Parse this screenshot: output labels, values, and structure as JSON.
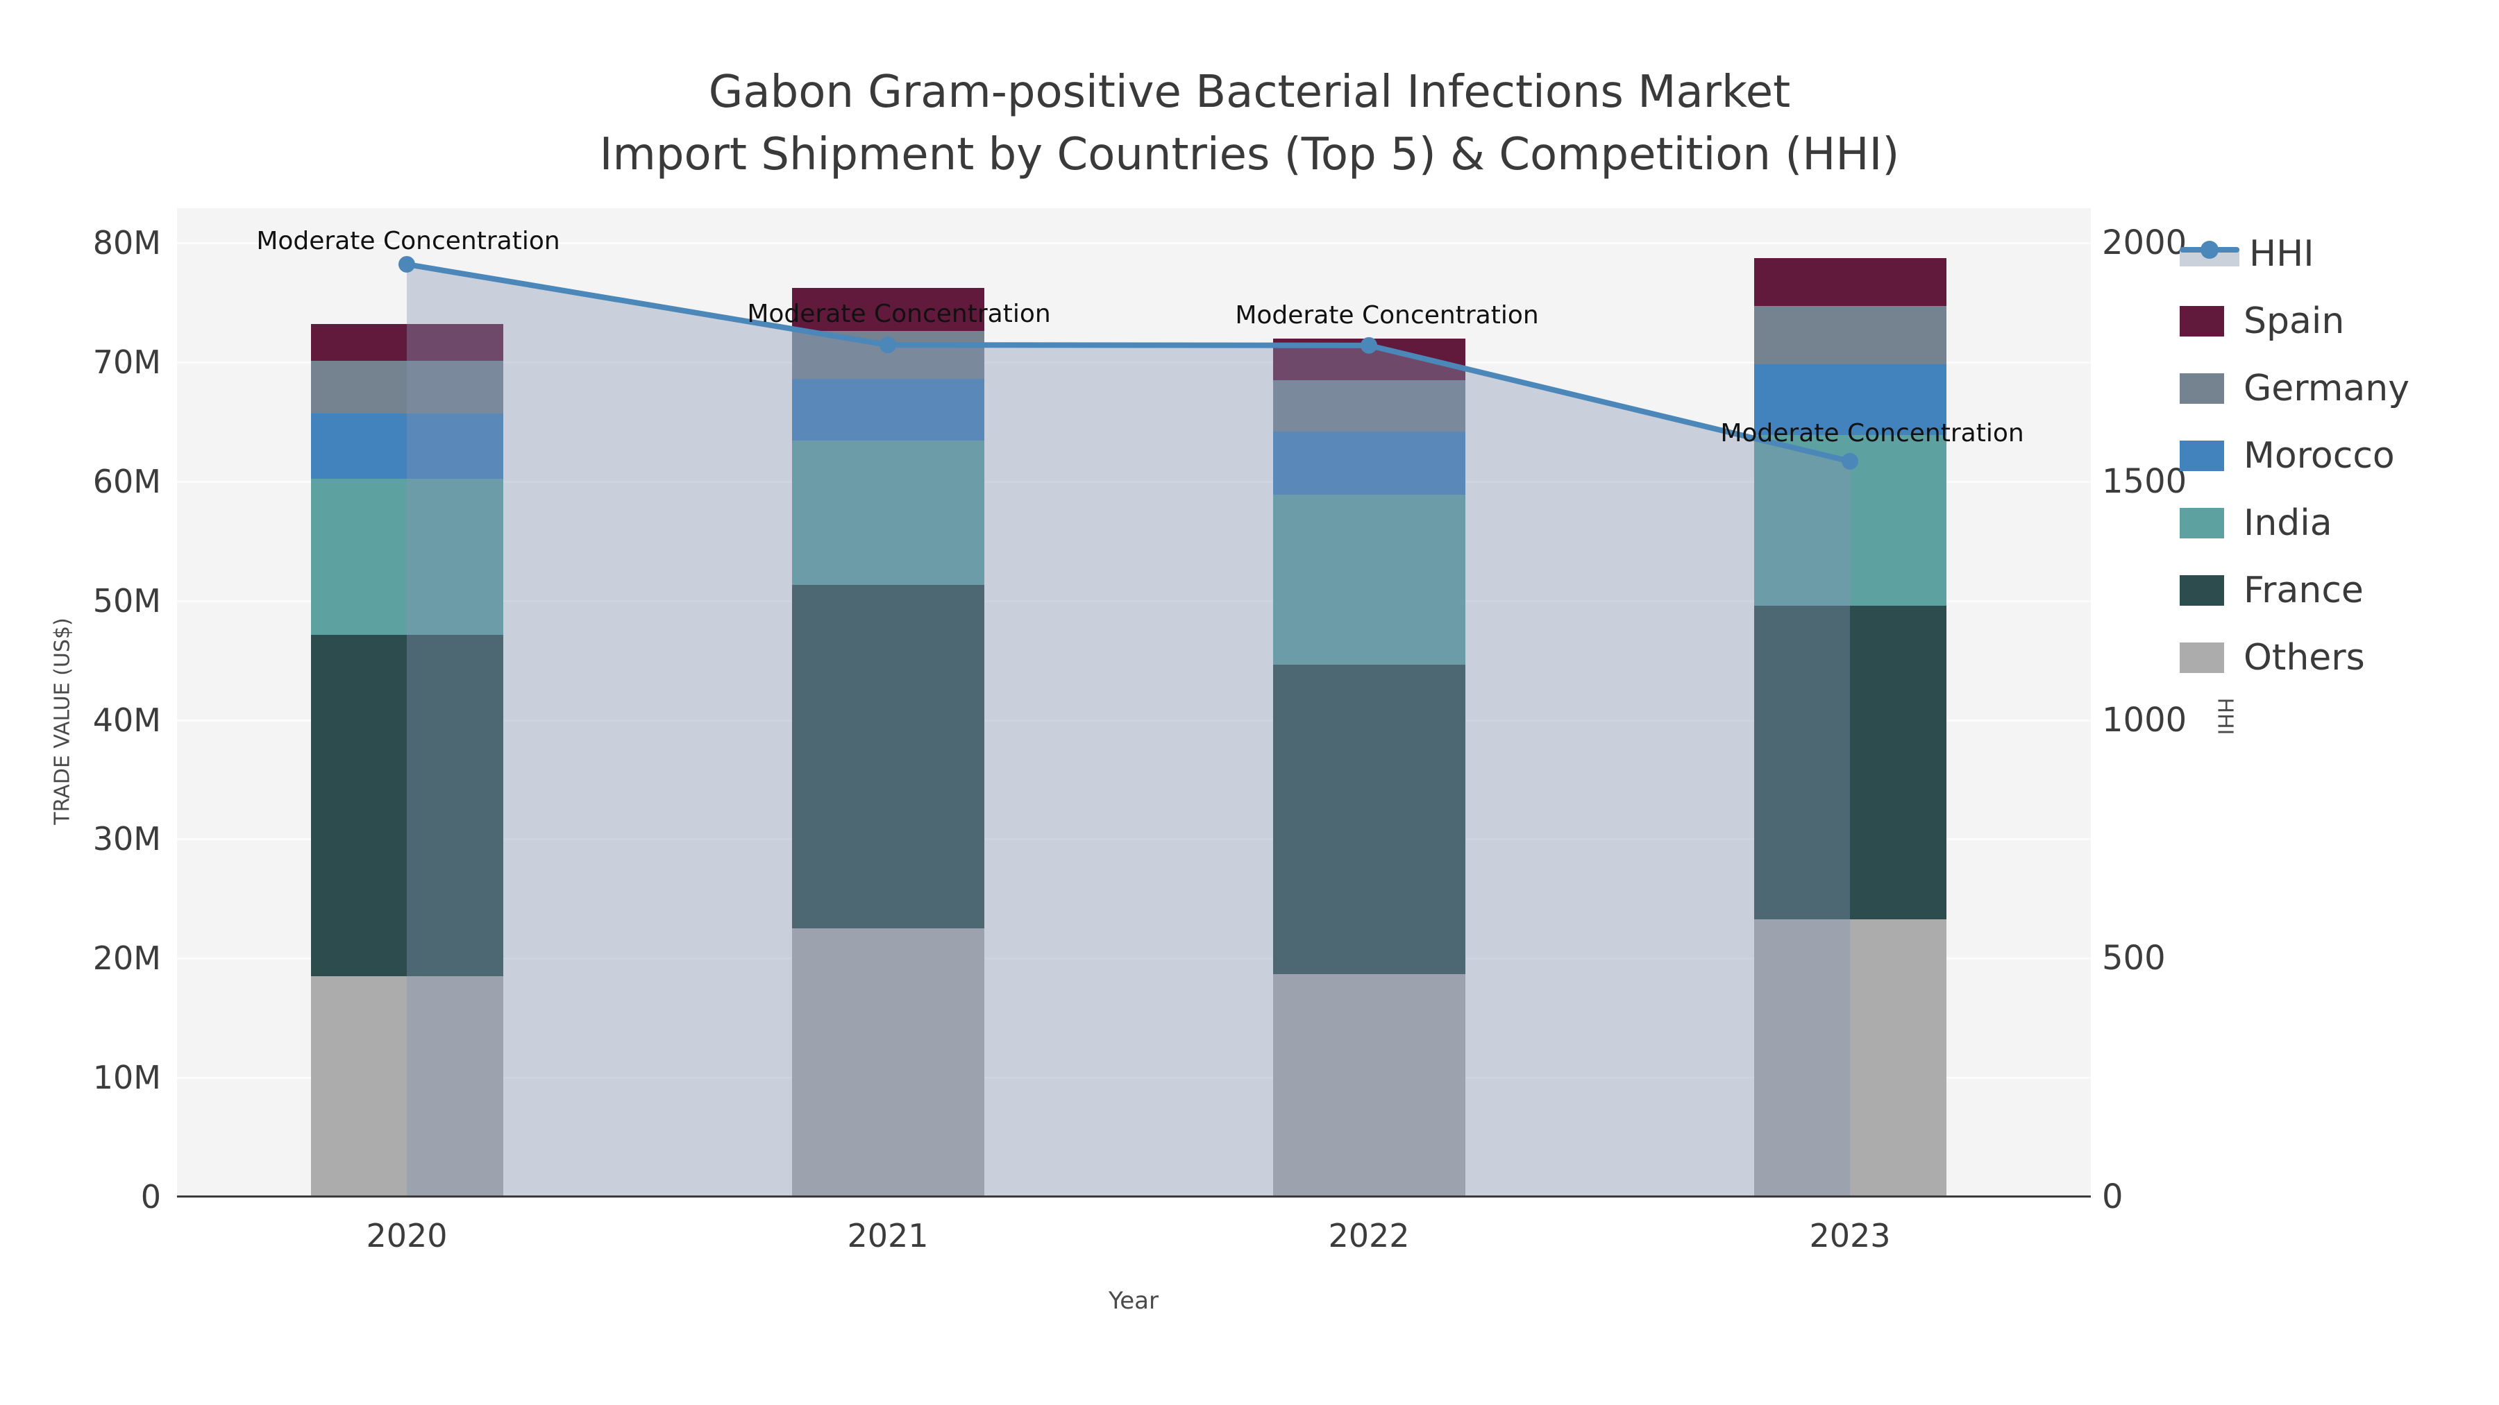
{
  "title": {
    "line1": "Gabon Gram-positive Bacterial Infections Market",
    "line2": "Import Shipment by Countries (Top 5) & Competition (HHI)"
  },
  "chart_data": {
    "type": "bar+line",
    "subtype": "stacked-bars-with-secondary-line",
    "categories": [
      "2020",
      "2021",
      "2022",
      "2023"
    ],
    "bar_unit": "US$ millions",
    "series": [
      {
        "name": "Others",
        "color": "#acacac",
        "values": [
          18.5,
          22.5,
          18.7,
          23.3
        ]
      },
      {
        "name": "France",
        "color": "#2d4c4d",
        "values": [
          28.6,
          28.8,
          25.9,
          26.3
        ]
      },
      {
        "name": "India",
        "color": "#5da1a1",
        "values": [
          13.1,
          12.1,
          14.3,
          14.3
        ]
      },
      {
        "name": "Morocco",
        "color": "#4282bd",
        "values": [
          5.5,
          5.2,
          5.3,
          5.9
        ]
      },
      {
        "name": "Germany",
        "color": "#75828f",
        "values": [
          4.4,
          4.0,
          4.3,
          4.9
        ]
      },
      {
        "name": "Spain",
        "color": "#611a3c",
        "values": [
          3.1,
          3.6,
          3.5,
          4.0
        ]
      }
    ],
    "line": {
      "name": "HHI",
      "color": "#4c87b9",
      "area_color": "rgba(132,150,178,0.38)",
      "values": [
        1955,
        1786,
        1785,
        1542
      ],
      "annotation": "Moderate Concentration"
    },
    "left_axis": {
      "label": "TRADE VALUE (US$)",
      "ticks": [
        "0",
        "10M",
        "20M",
        "30M",
        "40M",
        "50M",
        "60M",
        "70M",
        "80M"
      ],
      "tick_values": [
        0,
        10,
        20,
        30,
        40,
        50,
        60,
        70,
        80
      ],
      "max": 80
    },
    "right_axis": {
      "label": "HHI",
      "ticks": [
        "0",
        "500",
        "1000",
        "1500",
        "2000"
      ],
      "tick_values": [
        0,
        500,
        1000,
        1500,
        2000
      ],
      "max": 2000
    },
    "x_axis": {
      "label": "Year"
    },
    "legend": [
      "HHI",
      "Spain",
      "Germany",
      "Morocco",
      "India",
      "France",
      "Others"
    ],
    "grid": true,
    "legend_position": "right-outside"
  }
}
